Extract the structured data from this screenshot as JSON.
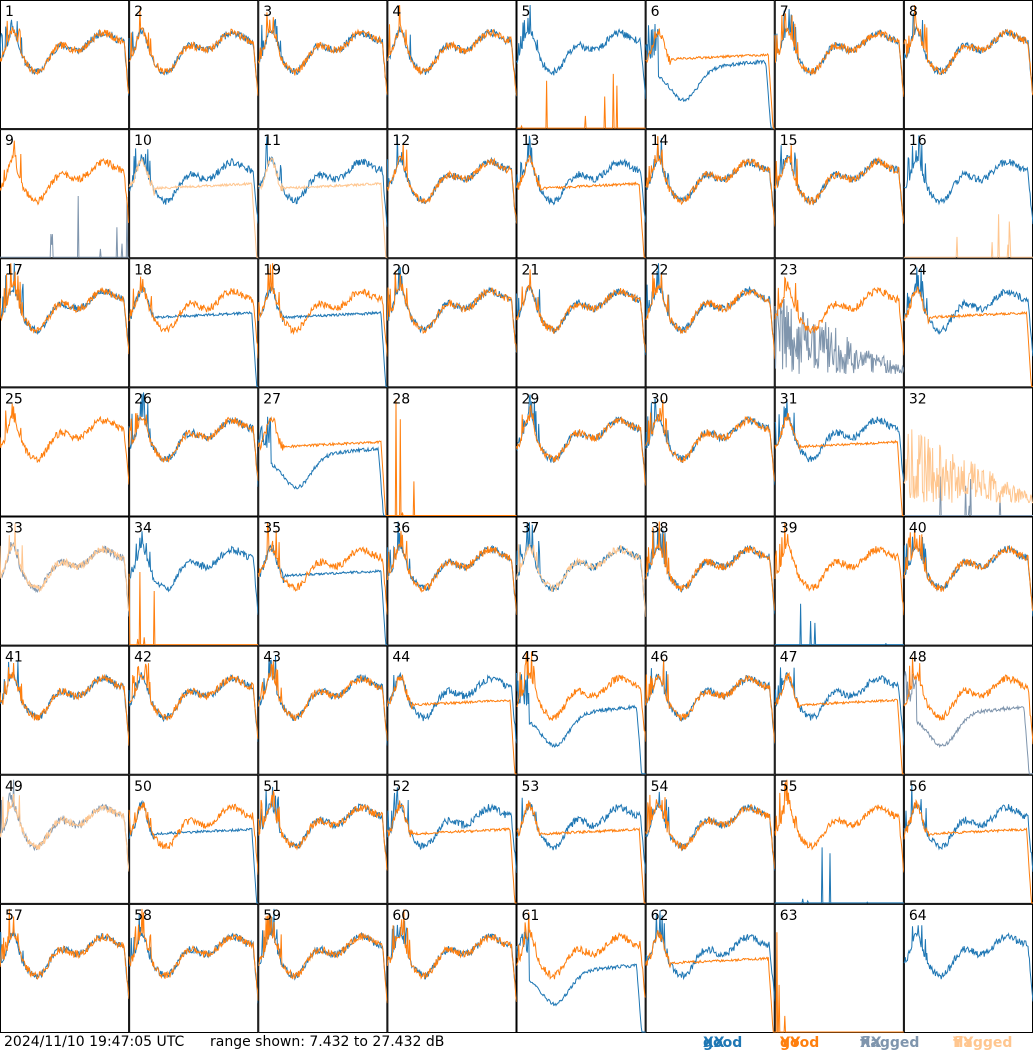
{
  "footer": {
    "timestamp": "2024/11/10 19:47:05 UTC",
    "range_text": "range shown: 7.432 to 27.432 dB",
    "legend": [
      {
        "label_a": "good ",
        "label_b": "XX",
        "color": "#1f77b4"
      },
      {
        "label_a": "good ",
        "label_b": "YY",
        "color": "#ff7f0e"
      },
      {
        "label_a": "flagged ",
        "label_b": "XX",
        "color": "#7f95ad"
      },
      {
        "label_a": "flagged ",
        "label_b": "YY",
        "color": "#ffc68f"
      }
    ]
  },
  "chart_data": {
    "type": "line",
    "title": "",
    "ylim_db": [
      7.432,
      27.432
    ],
    "grid": "8x8 small multiples, no axes",
    "colors": {
      "good_xx": "#1f77b4",
      "good_yy": "#ff7f0e",
      "flagged_xx": "#7f95ad",
      "flagged_yy": "#ffc68f"
    },
    "panels": [
      {
        "id": "1",
        "xx": "good",
        "yy": "good",
        "xx_shape": "normal",
        "yy_shape": "normal"
      },
      {
        "id": "2",
        "xx": "good",
        "yy": "good",
        "xx_shape": "normal",
        "yy_shape": "normal"
      },
      {
        "id": "3",
        "xx": "good",
        "yy": "good",
        "xx_shape": "normal",
        "yy_shape": "normal"
      },
      {
        "id": "4",
        "xx": "good",
        "yy": "good",
        "xx_shape": "normal",
        "yy_shape": "normal"
      },
      {
        "id": "5",
        "xx": "good",
        "yy": "good",
        "xx_shape": "normal",
        "yy_shape": "dead"
      },
      {
        "id": "6",
        "xx": "good",
        "yy": "good",
        "xx_shape": "dip",
        "yy_shape": "flat"
      },
      {
        "id": "7",
        "xx": "good",
        "yy": "good",
        "xx_shape": "normal",
        "yy_shape": "normal"
      },
      {
        "id": "8",
        "xx": "good",
        "yy": "good",
        "xx_shape": "normal",
        "yy_shape": "normal"
      },
      {
        "id": "9",
        "xx": "flagged",
        "yy": "good",
        "xx_shape": "dead",
        "yy_shape": "normal"
      },
      {
        "id": "10",
        "xx": "good",
        "yy": "flagged",
        "xx_shape": "normal",
        "yy_shape": "flat"
      },
      {
        "id": "11",
        "xx": "good",
        "yy": "flagged",
        "xx_shape": "normal",
        "yy_shape": "flat"
      },
      {
        "id": "12",
        "xx": "good",
        "yy": "good",
        "xx_shape": "normal",
        "yy_shape": "normal"
      },
      {
        "id": "13",
        "xx": "good",
        "yy": "good",
        "xx_shape": "normal",
        "yy_shape": "flat"
      },
      {
        "id": "14",
        "xx": "good",
        "yy": "good",
        "xx_shape": "normal",
        "yy_shape": "normal"
      },
      {
        "id": "15",
        "xx": "good",
        "yy": "good",
        "xx_shape": "normal",
        "yy_shape": "normal"
      },
      {
        "id": "16",
        "xx": "good",
        "yy": "flagged",
        "xx_shape": "normal",
        "yy_shape": "dead"
      },
      {
        "id": "17",
        "xx": "good",
        "yy": "good",
        "xx_shape": "normal",
        "yy_shape": "normal"
      },
      {
        "id": "18",
        "xx": "good",
        "yy": "good",
        "xx_shape": "flat",
        "yy_shape": "normal"
      },
      {
        "id": "19",
        "xx": "good",
        "yy": "good",
        "xx_shape": "flat",
        "yy_shape": "normal"
      },
      {
        "id": "20",
        "xx": "good",
        "yy": "good",
        "xx_shape": "normal",
        "yy_shape": "normal"
      },
      {
        "id": "21",
        "xx": "good",
        "yy": "good",
        "xx_shape": "normal",
        "yy_shape": "normal"
      },
      {
        "id": "22",
        "xx": "good",
        "yy": "good",
        "xx_shape": "normal",
        "yy_shape": "normal"
      },
      {
        "id": "23",
        "xx": "flagged",
        "yy": "good",
        "xx_shape": "noise",
        "yy_shape": "normal"
      },
      {
        "id": "24",
        "xx": "good",
        "yy": "good",
        "xx_shape": "normal",
        "yy_shape": "flat"
      },
      {
        "id": "25",
        "xx": "good",
        "yy": "good",
        "xx_shape": "none",
        "yy_shape": "normal"
      },
      {
        "id": "26",
        "xx": "good",
        "yy": "good",
        "xx_shape": "normal",
        "yy_shape": "normal"
      },
      {
        "id": "27",
        "xx": "good",
        "yy": "good",
        "xx_shape": "dip",
        "yy_shape": "flat"
      },
      {
        "id": "28",
        "xx": "good",
        "yy": "good",
        "xx_shape": "none",
        "yy_shape": "spikes"
      },
      {
        "id": "29",
        "xx": "good",
        "yy": "good",
        "xx_shape": "normal",
        "yy_shape": "normal"
      },
      {
        "id": "30",
        "xx": "good",
        "yy": "good",
        "xx_shape": "normal",
        "yy_shape": "normal"
      },
      {
        "id": "31",
        "xx": "good",
        "yy": "good",
        "xx_shape": "normal",
        "yy_shape": "flat"
      },
      {
        "id": "32",
        "xx": "flagged",
        "yy": "flagged",
        "xx_shape": "dead",
        "yy_shape": "noise"
      },
      {
        "id": "33",
        "xx": "flagged",
        "yy": "flagged",
        "xx_shape": "normal",
        "yy_shape": "normal"
      },
      {
        "id": "34",
        "xx": "good",
        "yy": "good",
        "xx_shape": "normal",
        "yy_shape": "spikes"
      },
      {
        "id": "35",
        "xx": "good",
        "yy": "good",
        "xx_shape": "flat",
        "yy_shape": "normal"
      },
      {
        "id": "36",
        "xx": "good",
        "yy": "good",
        "xx_shape": "normal",
        "yy_shape": "normal"
      },
      {
        "id": "37",
        "xx": "good",
        "yy": "flagged",
        "xx_shape": "normal",
        "yy_shape": "normal"
      },
      {
        "id": "38",
        "xx": "good",
        "yy": "good",
        "xx_shape": "normal",
        "yy_shape": "normal"
      },
      {
        "id": "39",
        "xx": "good",
        "yy": "good",
        "xx_shape": "dead",
        "yy_shape": "normal"
      },
      {
        "id": "40",
        "xx": "good",
        "yy": "good",
        "xx_shape": "normal",
        "yy_shape": "normal"
      },
      {
        "id": "41",
        "xx": "good",
        "yy": "good",
        "xx_shape": "normal",
        "yy_shape": "normal"
      },
      {
        "id": "42",
        "xx": "good",
        "yy": "good",
        "xx_shape": "normal",
        "yy_shape": "normal"
      },
      {
        "id": "43",
        "xx": "good",
        "yy": "good",
        "xx_shape": "normal",
        "yy_shape": "normal"
      },
      {
        "id": "44",
        "xx": "good",
        "yy": "good",
        "xx_shape": "normal",
        "yy_shape": "flat"
      },
      {
        "id": "45",
        "xx": "good",
        "yy": "good",
        "xx_shape": "dip",
        "yy_shape": "normal"
      },
      {
        "id": "46",
        "xx": "good",
        "yy": "good",
        "xx_shape": "normal",
        "yy_shape": "normal"
      },
      {
        "id": "47",
        "xx": "good",
        "yy": "good",
        "xx_shape": "normal",
        "yy_shape": "flat"
      },
      {
        "id": "48",
        "xx": "flagged",
        "yy": "good",
        "xx_shape": "dip",
        "yy_shape": "normal"
      },
      {
        "id": "49",
        "xx": "flagged",
        "yy": "flagged",
        "xx_shape": "normal",
        "yy_shape": "normal"
      },
      {
        "id": "50",
        "xx": "good",
        "yy": "good",
        "xx_shape": "flat",
        "yy_shape": "normal"
      },
      {
        "id": "51",
        "xx": "good",
        "yy": "good",
        "xx_shape": "normal",
        "yy_shape": "normal"
      },
      {
        "id": "52",
        "xx": "good",
        "yy": "good",
        "xx_shape": "normal",
        "yy_shape": "flat"
      },
      {
        "id": "53",
        "xx": "good",
        "yy": "good",
        "xx_shape": "normal",
        "yy_shape": "flat"
      },
      {
        "id": "54",
        "xx": "good",
        "yy": "good",
        "xx_shape": "normal",
        "yy_shape": "normal"
      },
      {
        "id": "55",
        "xx": "good",
        "yy": "good",
        "xx_shape": "dead",
        "yy_shape": "normal"
      },
      {
        "id": "56",
        "xx": "good",
        "yy": "good",
        "xx_shape": "normal",
        "yy_shape": "flat"
      },
      {
        "id": "57",
        "xx": "good",
        "yy": "good",
        "xx_shape": "normal",
        "yy_shape": "normal"
      },
      {
        "id": "58",
        "xx": "good",
        "yy": "good",
        "xx_shape": "normal",
        "yy_shape": "normal"
      },
      {
        "id": "59",
        "xx": "good",
        "yy": "good",
        "xx_shape": "normal",
        "yy_shape": "normal"
      },
      {
        "id": "60",
        "xx": "good",
        "yy": "good",
        "xx_shape": "normal",
        "yy_shape": "normal"
      },
      {
        "id": "61",
        "xx": "good",
        "yy": "good",
        "xx_shape": "dip",
        "yy_shape": "normal"
      },
      {
        "id": "62",
        "xx": "good",
        "yy": "good",
        "xx_shape": "normal",
        "yy_shape": "flat"
      },
      {
        "id": "63",
        "xx": "good",
        "yy": "good",
        "xx_shape": "none",
        "yy_shape": "spikes"
      },
      {
        "id": "64",
        "xx": "good",
        "yy": "good",
        "xx_shape": "normal",
        "yy_shape": "none"
      }
    ]
  }
}
